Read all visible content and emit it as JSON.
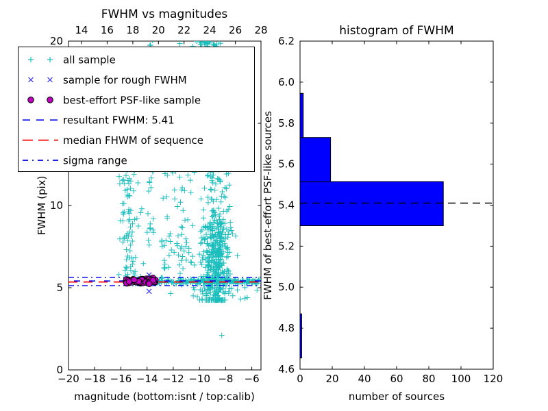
{
  "figure": {
    "background": "#ffffff",
    "left_plot": {
      "x_tick_values": [
        -20,
        -18,
        -16,
        -14,
        -12,
        -10,
        -8,
        -6
      ],
      "x_tick_labels": [
        "−20",
        "−18",
        "−16",
        "−14",
        "−12",
        "−10",
        "−8",
        "−6"
      ],
      "top_tick_values": [
        14,
        16,
        18,
        20,
        22,
        24,
        26,
        28
      ],
      "top_tick_labels": [
        "14",
        "16",
        "18",
        "20",
        "22",
        "24",
        "26",
        "28"
      ],
      "y_tick_values": [
        0,
        5,
        10,
        15,
        20
      ],
      "y_tick_labels": [
        "0",
        "5",
        "10",
        "15",
        "20"
      ],
      "legend": {
        "entries": [
          {
            "label": "all sample",
            "glyph": "plus",
            "color": "#1cbdbd"
          },
          {
            "label": "sample for rough FWHM",
            "glyph": "x",
            "color": "#3a3af0"
          },
          {
            "label": "best-effort PSF-like sample",
            "glyph": "circle",
            "color": "#bf00bf",
            "edge": "#000000"
          },
          {
            "label": "resultant FWHM: 5.41",
            "glyph": "dashed-line",
            "color": "#0000ee"
          },
          {
            "label": "median FHWM of sequence",
            "glyph": "dashed-line",
            "color": "#ff0000"
          },
          {
            "label": "sigma range",
            "glyph": "dashdot-line",
            "color": "#0000ee"
          }
        ]
      }
    },
    "right_plot": {
      "x_tick_values": [
        0,
        20,
        40,
        60,
        80,
        100,
        120
      ],
      "x_tick_labels": [
        "0",
        "20",
        "40",
        "60",
        "80",
        "100",
        "120"
      ],
      "y_tick_values": [
        4.6,
        4.8,
        5.0,
        5.2,
        5.4,
        5.6,
        5.8,
        6.0,
        6.2
      ],
      "y_tick_labels": [
        "4.6",
        "4.8",
        "5.0",
        "5.2",
        "5.4",
        "5.6",
        "5.8",
        "6.0",
        "6.2"
      ]
    }
  },
  "chart_data": [
    {
      "type": "scatter",
      "title": "FWHM vs magnitudes",
      "xlabel": "magnitude (bottom:isnt / top:calib)",
      "ylabel": "FWHM (pix)",
      "xlim": [
        -20,
        -5.3
      ],
      "ylim": [
        0,
        20
      ],
      "top_axis_range": [
        14,
        28
      ],
      "series": [
        {
          "name": "all sample",
          "marker": "plus",
          "color": "#1cbdbd",
          "note": "dense sample of ~1000 sources; point positions estimated from image as cluster distributions",
          "clusters": [
            {
              "n": 200,
              "x": {
                "dist": "uniform",
                "min": -13.35,
                "max": -5.4
              },
              "y": {
                "dist": "normal",
                "mean": 5.38,
                "sd": 0.09,
                "min": 5.12,
                "max": 5.72
              }
            },
            {
              "n": 16,
              "x": {
                "dist": "uniform",
                "min": -15.9,
                "max": -13.35
              },
              "y": {
                "dist": "normal",
                "mean": 5.45,
                "sd": 0.15,
                "min": 5.1,
                "max": 5.95
              }
            },
            {
              "n": 380,
              "x": {
                "dist": "normal",
                "mean": -8.7,
                "sd": 0.55,
                "min": -10.4,
                "max": -6.8
              },
              "y": {
                "dist": "normal",
                "mean": 6.6,
                "sd": 1.6,
                "min": 4.25,
                "max": 11.5
              }
            },
            {
              "n": 150,
              "x": {
                "dist": "normal",
                "mean": -8.8,
                "sd": 0.5,
                "min": -10.2,
                "max": -7.2
              },
              "y": {
                "dist": "uniform",
                "min": 8,
                "max": 19.3
              }
            },
            {
              "n": 45,
              "x": {
                "dist": "normal",
                "mean": -9.4,
                "sd": 0.45,
                "min": -10.5,
                "max": -8.4
              },
              "y": {
                "dist": "normal",
                "mean": 19.9,
                "sd": 0.3,
                "min": 19.3,
                "max": 20.3
              }
            },
            {
              "n": 70,
              "x": {
                "dist": "uniform",
                "min": -12.9,
                "max": -10.3
              },
              "y": {
                "dist": "uniform",
                "min": 5.7,
                "max": 12.3
              }
            },
            {
              "n": 75,
              "x": {
                "dist": "normal",
                "mean": -15.3,
                "sd": 0.45,
                "min": -16.3,
                "max": -14.2
              },
              "y": {
                "dist": "uniform",
                "min": 5.7,
                "max": 12.3
              }
            },
            {
              "n": 55,
              "x": {
                "dist": "normal",
                "mean": -13.7,
                "sd": 0.18,
                "min": -14.2,
                "max": -13.2
              },
              "y": {
                "dist": "uniform",
                "min": 7.5,
                "max": 20.2
              }
            },
            {
              "n": 22,
              "x": {
                "dist": "uniform",
                "min": -10.5,
                "max": -6.2
              },
              "y": {
                "dist": "uniform",
                "min": 4.2,
                "max": 5.05
              }
            }
          ],
          "outliers": [
            [
              -8.3,
              2.1
            ],
            [
              -6.35,
              4.4
            ],
            [
              -5.6,
              4.85
            ],
            [
              -12.2,
              4.65
            ],
            [
              -11.5,
              19.85
            ]
          ]
        },
        {
          "name": "sample for rough FWHM",
          "marker": "x",
          "color": "#3a3af0",
          "points": [
            [
              -13.85,
              5.78
            ],
            [
              -13.85,
              4.78
            ],
            [
              -15.2,
              5.42
            ],
            [
              -14.8,
              5.35
            ],
            [
              -14.5,
              5.48
            ],
            [
              -14.1,
              5.32
            ],
            [
              -13.7,
              5.45
            ],
            [
              -15.0,
              5.5
            ],
            [
              -14.3,
              5.4
            ],
            [
              -13.5,
              5.35
            ]
          ]
        },
        {
          "name": "best-effort PSF-like sample",
          "marker": "circle",
          "color": "#bf00bf",
          "edge_color": "#000000",
          "clusters": [
            {
              "n": 60,
              "x": {
                "dist": "uniform",
                "min": -15.7,
                "max": -13.35
              },
              "y": {
                "dist": "normal",
                "mean": 5.4,
                "sd": 0.08,
                "min": 5.2,
                "max": 5.6
              }
            }
          ]
        }
      ],
      "lines": [
        {
          "name": "resultant FWHM",
          "y": 5.41,
          "style": "dashed",
          "color": "#0000ee"
        },
        {
          "name": "median FHWM of sequence",
          "y": 5.35,
          "style": "dashed",
          "color": "#ff0000"
        },
        {
          "name": "sigma range",
          "y": [
            5.13,
            5.62
          ],
          "style": "dashdot",
          "color": "#0000ee"
        }
      ]
    },
    {
      "type": "bar",
      "orientation": "horizontal",
      "title": "histogram of FWHM",
      "xlabel": "number of sources",
      "ylabel": "FWHM of best-effort PSF-like sources",
      "xlim": [
        0,
        120
      ],
      "ylim": [
        4.6,
        6.2
      ],
      "bin_edges": [
        4.655,
        4.87,
        5.085,
        5.3,
        5.515,
        5.73,
        5.945
      ],
      "counts": [
        1,
        0,
        0,
        89,
        19,
        2
      ],
      "bar_color": "#0000ff",
      "bar_edge_color": "#000000",
      "dashed_line_y": 5.41,
      "dashed_line_color": "#000000",
      "grid": false
    }
  ]
}
